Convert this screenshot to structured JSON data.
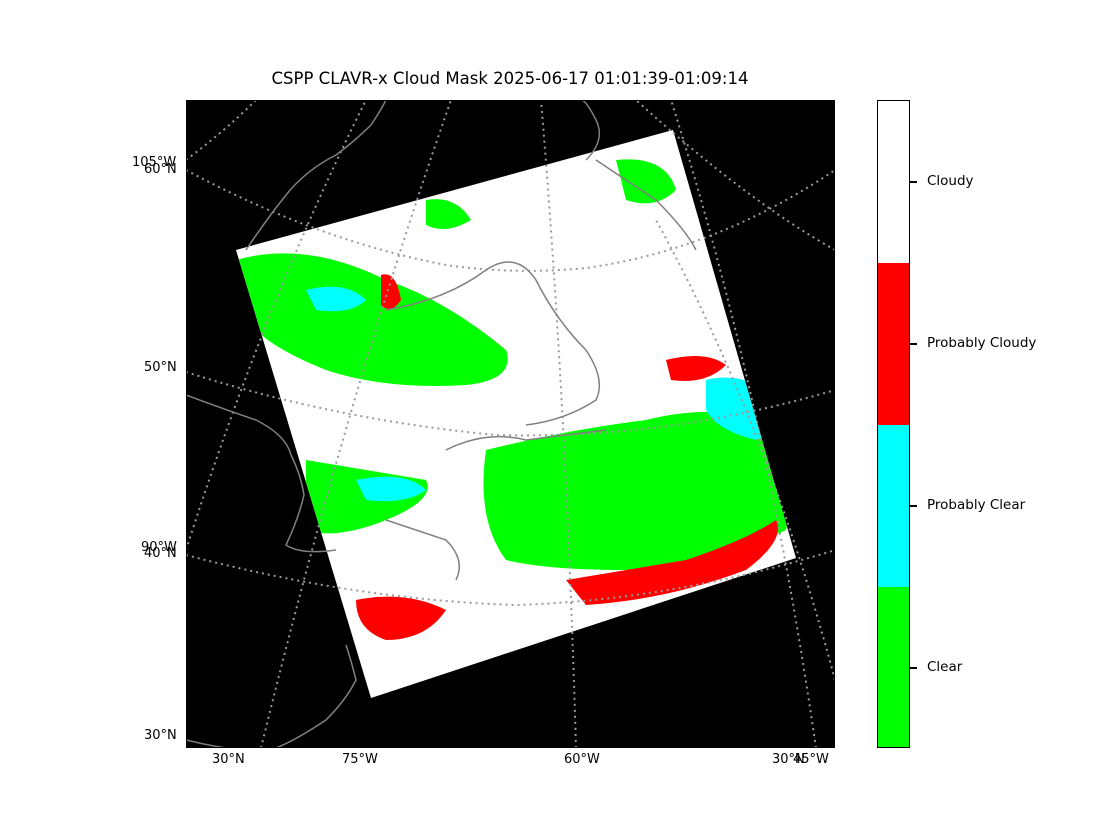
{
  "title": "CSPP CLAVR-x Cloud Mask 2025-06-17 01:01:39-01:09:14",
  "map": {
    "background": "#000000",
    "coastline_color": "#808080",
    "gridline_color": "#9a9a9a",
    "left_labels": {
      "lon_105": "105°W",
      "lat_60": "60°N",
      "lat_50": "50°N",
      "lon_90": "90°W",
      "lat_40": "40°N",
      "lat_30": "30°N"
    },
    "bottom_labels": {
      "lat_30": "30°N",
      "lon_75": "75°W",
      "lon_60": "60°W",
      "lat_30_right": "30°N",
      "lon_45": "45°W"
    }
  },
  "colorbar": {
    "categories": [
      {
        "label": "Cloudy",
        "color": "#ffffff"
      },
      {
        "label": "Probably Cloudy",
        "color": "#ff0000"
      },
      {
        "label": "Probably Clear",
        "color": "#00ffff"
      },
      {
        "label": "Clear",
        "color": "#00ff00"
      }
    ]
  }
}
